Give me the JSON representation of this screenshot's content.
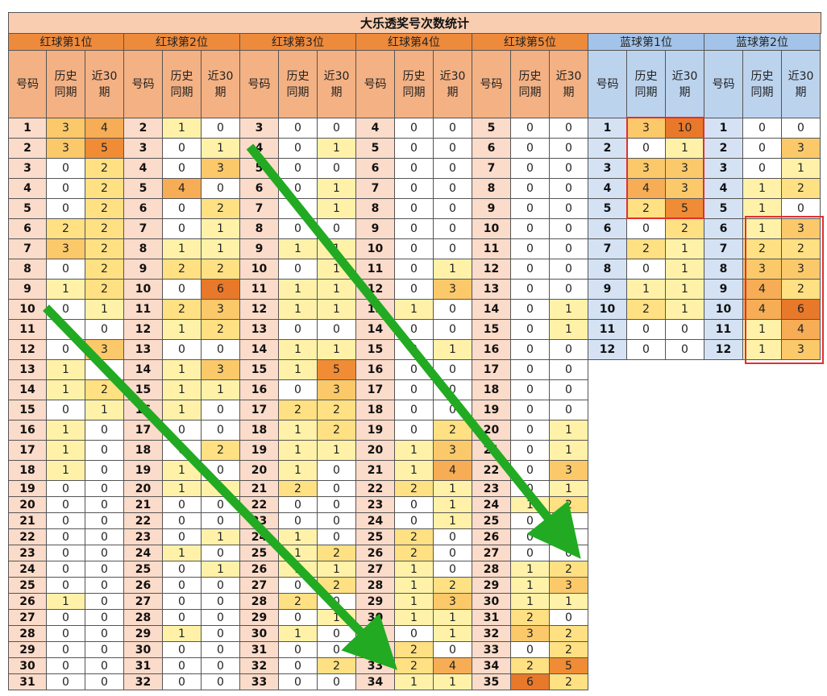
{
  "title": "大乐透奖号次数统计",
  "sub_headers": {
    "num": "号码",
    "hist": "历史\n同期",
    "recent": "近30\n期"
  },
  "groups": [
    {
      "label": "红球第1位",
      "kind": "red",
      "rows": [
        [
          "1",
          "3",
          "4"
        ],
        [
          "2",
          "3",
          "5"
        ],
        [
          "3",
          "0",
          "2"
        ],
        [
          "4",
          "0",
          "2"
        ],
        [
          "5",
          "0",
          "2"
        ],
        [
          "6",
          "2",
          "2"
        ],
        [
          "7",
          "3",
          "2"
        ],
        [
          "8",
          "0",
          "2"
        ],
        [
          "9",
          "1",
          "2"
        ],
        [
          "10",
          "0",
          "1"
        ],
        [
          "11",
          "0",
          "0"
        ],
        [
          "12",
          "0",
          "3"
        ],
        [
          "13",
          "1",
          "0"
        ],
        [
          "14",
          "1",
          "2"
        ],
        [
          "15",
          "0",
          "1"
        ],
        [
          "16",
          "1",
          "0"
        ],
        [
          "17",
          "1",
          "0"
        ],
        [
          "18",
          "1",
          "0"
        ],
        [
          "19",
          "0",
          "0"
        ],
        [
          "20",
          "0",
          "0"
        ],
        [
          "21",
          "0",
          "0"
        ],
        [
          "22",
          "0",
          "0"
        ],
        [
          "23",
          "0",
          "0"
        ],
        [
          "24",
          "0",
          "0"
        ],
        [
          "25",
          "0",
          "0"
        ],
        [
          "26",
          "1",
          "0"
        ],
        [
          "27",
          "0",
          "0"
        ],
        [
          "28",
          "0",
          "0"
        ],
        [
          "29",
          "0",
          "0"
        ],
        [
          "30",
          "0",
          "0"
        ],
        [
          "31",
          "0",
          "0"
        ]
      ]
    },
    {
      "label": "红球第2位",
      "kind": "red",
      "rows": [
        [
          "2",
          "1",
          "0"
        ],
        [
          "3",
          "0",
          "1"
        ],
        [
          "4",
          "0",
          "3"
        ],
        [
          "5",
          "4",
          "0"
        ],
        [
          "6",
          "0",
          "2"
        ],
        [
          "7",
          "0",
          "1"
        ],
        [
          "8",
          "1",
          "1"
        ],
        [
          "9",
          "2",
          "2"
        ],
        [
          "10",
          "0",
          "6"
        ],
        [
          "11",
          "2",
          "3"
        ],
        [
          "12",
          "1",
          "2"
        ],
        [
          "13",
          "0",
          "0"
        ],
        [
          "14",
          "1",
          "3"
        ],
        [
          "15",
          "1",
          "1"
        ],
        [
          "16",
          "1",
          "0"
        ],
        [
          "17",
          "0",
          "0"
        ],
        [
          "18",
          "0",
          "2"
        ],
        [
          "19",
          "1",
          "0"
        ],
        [
          "20",
          "1",
          "1"
        ],
        [
          "21",
          "0",
          "0"
        ],
        [
          "22",
          "0",
          "0"
        ],
        [
          "23",
          "0",
          "1"
        ],
        [
          "24",
          "1",
          "0"
        ],
        [
          "25",
          "0",
          "1"
        ],
        [
          "26",
          "0",
          "0"
        ],
        [
          "27",
          "0",
          "0"
        ],
        [
          "28",
          "0",
          "0"
        ],
        [
          "29",
          "1",
          "0"
        ],
        [
          "30",
          "0",
          "0"
        ],
        [
          "31",
          "0",
          "0"
        ],
        [
          "32",
          "0",
          "0"
        ]
      ]
    },
    {
      "label": "红球第3位",
      "kind": "red",
      "rows": [
        [
          "3",
          "0",
          "0"
        ],
        [
          "4",
          "0",
          "1"
        ],
        [
          "5",
          "0",
          "0"
        ],
        [
          "6",
          "0",
          "1"
        ],
        [
          "7",
          "0",
          "1"
        ],
        [
          "8",
          "0",
          "0"
        ],
        [
          "9",
          "1",
          "1"
        ],
        [
          "10",
          "0",
          "1"
        ],
        [
          "11",
          "1",
          "1"
        ],
        [
          "12",
          "1",
          "1"
        ],
        [
          "13",
          "0",
          "0"
        ],
        [
          "14",
          "1",
          "1"
        ],
        [
          "15",
          "1",
          "5"
        ],
        [
          "16",
          "0",
          "3"
        ],
        [
          "17",
          "2",
          "2"
        ],
        [
          "18",
          "1",
          "2"
        ],
        [
          "19",
          "1",
          "1"
        ],
        [
          "20",
          "1",
          "0"
        ],
        [
          "21",
          "2",
          "0"
        ],
        [
          "22",
          "0",
          "0"
        ],
        [
          "23",
          "0",
          "0"
        ],
        [
          "24",
          "1",
          "0"
        ],
        [
          "25",
          "1",
          "2"
        ],
        [
          "26",
          "1",
          "1"
        ],
        [
          "27",
          "0",
          "2"
        ],
        [
          "28",
          "2",
          "0"
        ],
        [
          "29",
          "0",
          "1"
        ],
        [
          "30",
          "1",
          "0"
        ],
        [
          "31",
          "0",
          "0"
        ],
        [
          "32",
          "0",
          "2"
        ],
        [
          "33",
          "0",
          "0"
        ]
      ]
    },
    {
      "label": "红球第4位",
      "kind": "red",
      "rows": [
        [
          "4",
          "0",
          "0"
        ],
        [
          "5",
          "0",
          "0"
        ],
        [
          "6",
          "0",
          "0"
        ],
        [
          "7",
          "0",
          "0"
        ],
        [
          "8",
          "0",
          "0"
        ],
        [
          "9",
          "0",
          "0"
        ],
        [
          "10",
          "0",
          "0"
        ],
        [
          "11",
          "0",
          "1"
        ],
        [
          "12",
          "0",
          "3"
        ],
        [
          "13",
          "1",
          "0"
        ],
        [
          "14",
          "0",
          "0"
        ],
        [
          "15",
          "0",
          "1"
        ],
        [
          "16",
          "0",
          "0"
        ],
        [
          "17",
          "0",
          "0"
        ],
        [
          "18",
          "0",
          "0"
        ],
        [
          "19",
          "0",
          "2"
        ],
        [
          "20",
          "1",
          "3"
        ],
        [
          "21",
          "1",
          "4"
        ],
        [
          "22",
          "2",
          "1"
        ],
        [
          "23",
          "0",
          "1"
        ],
        [
          "24",
          "0",
          "1"
        ],
        [
          "25",
          "2",
          "0"
        ],
        [
          "26",
          "2",
          "0"
        ],
        [
          "27",
          "1",
          "0"
        ],
        [
          "28",
          "1",
          "2"
        ],
        [
          "29",
          "1",
          "3"
        ],
        [
          "30",
          "1",
          "1"
        ],
        [
          "31",
          "0",
          "1"
        ],
        [
          "32",
          "2",
          "0"
        ],
        [
          "33",
          "2",
          "4"
        ],
        [
          "34",
          "1",
          "1"
        ]
      ]
    },
    {
      "label": "红球第5位",
      "kind": "red",
      "rows": [
        [
          "5",
          "0",
          "0"
        ],
        [
          "6",
          "0",
          "0"
        ],
        [
          "7",
          "0",
          "0"
        ],
        [
          "8",
          "0",
          "0"
        ],
        [
          "9",
          "0",
          "0"
        ],
        [
          "10",
          "0",
          "0"
        ],
        [
          "11",
          "0",
          "0"
        ],
        [
          "12",
          "0",
          "0"
        ],
        [
          "13",
          "0",
          "0"
        ],
        [
          "14",
          "0",
          "1"
        ],
        [
          "15",
          "0",
          "1"
        ],
        [
          "16",
          "0",
          "0"
        ],
        [
          "17",
          "0",
          "0"
        ],
        [
          "18",
          "0",
          "0"
        ],
        [
          "19",
          "0",
          "0"
        ],
        [
          "20",
          "0",
          "1"
        ],
        [
          "21",
          "0",
          "1"
        ],
        [
          "22",
          "0",
          "3"
        ],
        [
          "23",
          "0",
          "1"
        ],
        [
          "24",
          "1",
          "2"
        ],
        [
          "25",
          "0",
          "0"
        ],
        [
          "26",
          "0",
          "0"
        ],
        [
          "27",
          "0",
          "0"
        ],
        [
          "28",
          "1",
          "2"
        ],
        [
          "29",
          "1",
          "3"
        ],
        [
          "30",
          "1",
          "1"
        ],
        [
          "31",
          "2",
          "0"
        ],
        [
          "32",
          "3",
          "2"
        ],
        [
          "33",
          "0",
          "2"
        ],
        [
          "34",
          "2",
          "5"
        ],
        [
          "35",
          "6",
          "2"
        ]
      ]
    },
    {
      "label": "蓝球第1位",
      "kind": "blue",
      "rows": [
        [
          "1",
          "3",
          "10"
        ],
        [
          "2",
          "0",
          "1"
        ],
        [
          "3",
          "3",
          "3"
        ],
        [
          "4",
          "4",
          "3"
        ],
        [
          "5",
          "2",
          "5"
        ],
        [
          "6",
          "0",
          "2"
        ],
        [
          "7",
          "2",
          "1"
        ],
        [
          "8",
          "0",
          "1"
        ],
        [
          "9",
          "1",
          "1"
        ],
        [
          "10",
          "2",
          "1"
        ],
        [
          "11",
          "0",
          "0"
        ],
        [
          "12",
          "0",
          "0"
        ]
      ]
    },
    {
      "label": "蓝球第2位",
      "kind": "blue",
      "rows": [
        [
          "1",
          "0",
          "0"
        ],
        [
          "2",
          "0",
          "3"
        ],
        [
          "3",
          "0",
          "1"
        ],
        [
          "4",
          "1",
          "2"
        ],
        [
          "5",
          "1",
          "0"
        ],
        [
          "6",
          "1",
          "3"
        ],
        [
          "7",
          "2",
          "2"
        ],
        [
          "8",
          "3",
          "3"
        ],
        [
          "9",
          "4",
          "2"
        ],
        [
          "10",
          "4",
          "6"
        ],
        [
          "11",
          "1",
          "4"
        ],
        [
          "12",
          "1",
          "3"
        ]
      ]
    }
  ],
  "colors": {
    "title_bg": "#f8cdb0",
    "red_group": "#ee8a3c",
    "blue_group": "#a3c3e8",
    "highlight_box": "#e03030",
    "arrow": "#22aa22"
  }
}
